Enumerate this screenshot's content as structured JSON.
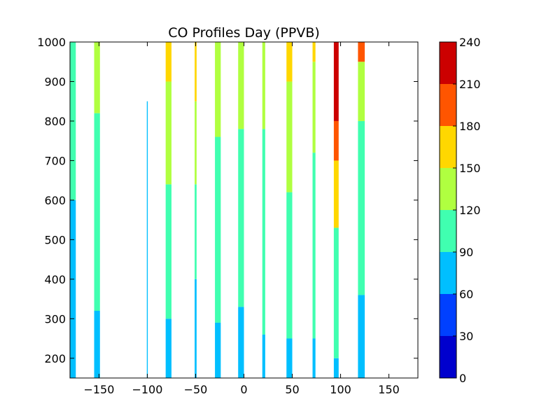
{
  "chart_data": {
    "type": "heatmap",
    "title": "CO Profiles Day (PPVB)",
    "xlabel": "",
    "ylabel": "",
    "xlim": [
      -180,
      180
    ],
    "ylim": [
      150,
      1000
    ],
    "x_ticks": [
      -150,
      -100,
      -50,
      0,
      50,
      100,
      150
    ],
    "x_tick_labels": [
      "−150",
      "−100",
      "−50",
      "0",
      "50",
      "100",
      "150"
    ],
    "y_ticks": [
      200,
      300,
      400,
      500,
      600,
      700,
      800,
      900,
      1000
    ],
    "y_tick_labels": [
      "200",
      "300",
      "400",
      "500",
      "600",
      "700",
      "800",
      "900",
      "1000"
    ],
    "grid": false,
    "colorbar": {
      "levels": [
        0,
        30,
        60,
        90,
        120,
        150,
        180,
        210,
        240
      ],
      "tick_labels": [
        "0",
        "30",
        "60",
        "90",
        "120",
        "150",
        "180",
        "210",
        "240"
      ],
      "colors": [
        "#0000cd",
        "#0040ff",
        "#00bfff",
        "#40ffb0",
        "#b0ff40",
        "#ffd700",
        "#ff5500",
        "#cc0000"
      ]
    },
    "profiles": [
      {
        "x0": -180,
        "x1": -174,
        "segments": [
          [
            150,
            600,
            75
          ],
          [
            600,
            830,
            105
          ],
          [
            830,
            1000,
            105
          ]
        ]
      },
      {
        "x0": -155,
        "x1": -149,
        "segments": [
          [
            150,
            320,
            75
          ],
          [
            320,
            820,
            105
          ],
          [
            820,
            1000,
            135
          ]
        ]
      },
      {
        "x0": -100.5,
        "x1": -99.5,
        "segments": [
          [
            150,
            850,
            75
          ]
        ]
      },
      {
        "x0": -81,
        "x1": -75,
        "segments": [
          [
            150,
            300,
            75
          ],
          [
            300,
            640,
            105
          ],
          [
            640,
            900,
            135
          ],
          [
            900,
            1000,
            165
          ]
        ]
      },
      {
        "x0": -51,
        "x1": -49,
        "segments": [
          [
            150,
            400,
            75
          ],
          [
            400,
            640,
            105
          ],
          [
            640,
            850,
            135
          ],
          [
            850,
            1000,
            165
          ]
        ]
      },
      {
        "x0": -30,
        "x1": -24,
        "segments": [
          [
            150,
            290,
            75
          ],
          [
            290,
            760,
            105
          ],
          [
            760,
            1000,
            135
          ]
        ]
      },
      {
        "x0": -6,
        "x1": 0,
        "segments": [
          [
            150,
            330,
            75
          ],
          [
            330,
            780,
            105
          ],
          [
            780,
            1000,
            135
          ]
        ]
      },
      {
        "x0": 19,
        "x1": 22,
        "segments": [
          [
            150,
            260,
            75
          ],
          [
            260,
            780,
            105
          ],
          [
            780,
            1000,
            135
          ]
        ]
      },
      {
        "x0": 44,
        "x1": 50,
        "segments": [
          [
            150,
            250,
            75
          ],
          [
            250,
            620,
            105
          ],
          [
            620,
            900,
            135
          ],
          [
            900,
            1000,
            165
          ]
        ]
      },
      {
        "x0": 71,
        "x1": 74,
        "segments": [
          [
            150,
            250,
            75
          ],
          [
            250,
            720,
            105
          ],
          [
            720,
            950,
            135
          ],
          [
            950,
            1000,
            165
          ]
        ]
      },
      {
        "x0": 93,
        "x1": 98,
        "segments": [
          [
            150,
            200,
            75
          ],
          [
            200,
            530,
            105
          ],
          [
            530,
            700,
            165
          ],
          [
            700,
            800,
            195
          ],
          [
            800,
            1000,
            225
          ]
        ]
      },
      {
        "x0": 118,
        "x1": 125,
        "segments": [
          [
            150,
            360,
            75
          ],
          [
            360,
            800,
            105
          ],
          [
            800,
            950,
            135
          ],
          [
            950,
            1000,
            195
          ]
        ]
      }
    ]
  }
}
